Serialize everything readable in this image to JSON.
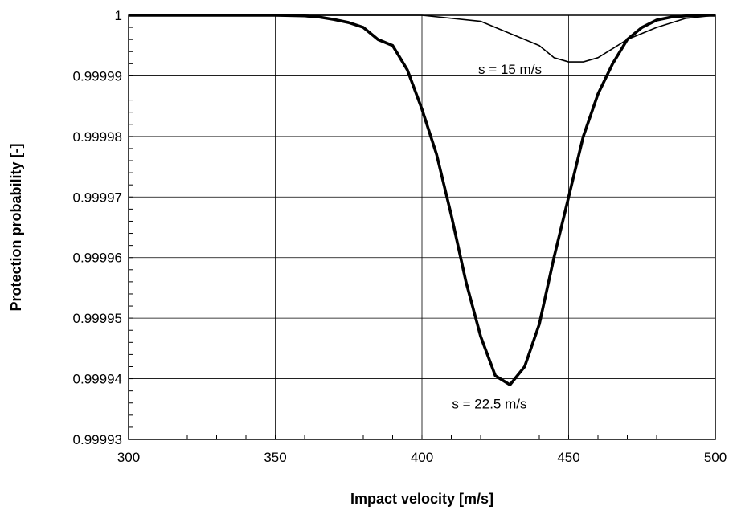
{
  "chart_data": {
    "type": "line",
    "title": "",
    "xlabel": "Impact velocity [m/s]",
    "ylabel": "Protection probability [-]",
    "xlim": [
      300,
      500
    ],
    "ylim": [
      0.99993,
      1
    ],
    "x_ticks": [
      300,
      350,
      400,
      450,
      500
    ],
    "x_tick_labels": [
      "300",
      "350",
      "400",
      "450",
      "500"
    ],
    "y_ticks": [
      0.99993,
      0.99994,
      0.99995,
      0.99996,
      0.99997,
      0.99998,
      0.99999,
      1
    ],
    "y_tick_labels": [
      "0.99993",
      "0.99994",
      "0.99995",
      "0.99996",
      "0.99997",
      "0.99998",
      "0.99999",
      "1"
    ],
    "grid": true,
    "legend": "none",
    "series": [
      {
        "line_width": "thin",
        "x": [
          300,
          400,
          420,
          430,
          435,
          440,
          445,
          450,
          455,
          460,
          470,
          480,
          490,
          500
        ],
        "y": [
          1.0,
          1.0,
          0.999999,
          0.999997,
          0.999996,
          0.999995,
          0.999993,
          0.9999923,
          0.9999923,
          0.999993,
          0.999996,
          0.999998,
          0.9999995,
          1.0
        ]
      },
      {
        "line_width": "thick",
        "x": [
          300,
          350,
          360,
          365,
          370,
          375,
          380,
          385,
          390,
          395,
          400,
          405,
          410,
          415,
          420,
          425,
          430,
          435,
          440,
          445,
          450,
          455,
          460,
          465,
          470,
          475,
          480,
          485,
          490,
          495,
          500
        ],
        "y": [
          1.0,
          1.0,
          0.9999999,
          0.9999997,
          0.9999993,
          0.9999988,
          0.999998,
          0.999996,
          0.999995,
          0.999991,
          0.9999845,
          0.999977,
          0.999967,
          0.999956,
          0.999947,
          0.9999405,
          0.999939,
          0.999942,
          0.999949,
          0.99996,
          0.99997,
          0.99998,
          0.999987,
          0.999992,
          0.999996,
          0.999998,
          0.9999992,
          0.9999997,
          0.9999999,
          1.0,
          1.0
        ]
      }
    ],
    "annotations": [
      {
        "text": "s = 15 m/s",
        "x": 430,
        "y": 0.9999903
      },
      {
        "text": "s = 22.5 m/s",
        "x": 423,
        "y": 0.9999351
      }
    ]
  }
}
